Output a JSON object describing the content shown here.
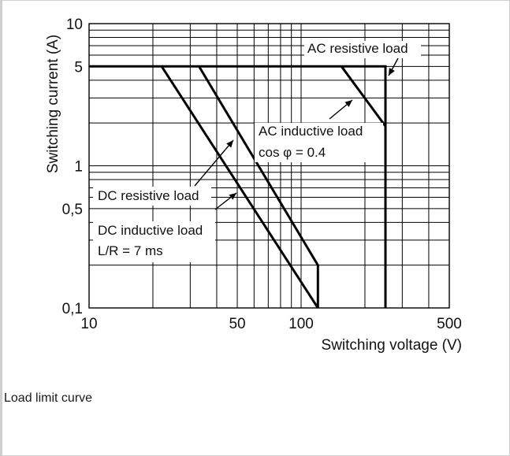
{
  "caption": "Load limit curve",
  "chart_data": {
    "type": "line",
    "xscale": "log",
    "yscale": "log",
    "xlim": [
      10,
      500
    ],
    "ylim": [
      0.1,
      10
    ],
    "xlabel": "Switching voltage (V)",
    "ylabel": "Switching current (A)",
    "x_tick_labels": [
      {
        "value": 10,
        "label": "10"
      },
      {
        "value": 50,
        "label": "50"
      },
      {
        "value": 100,
        "label": "100"
      },
      {
        "value": 500,
        "label": "500"
      }
    ],
    "y_tick_labels": [
      {
        "value": 10,
        "label": "10"
      },
      {
        "value": 5,
        "label": "5"
      },
      {
        "value": 1,
        "label": "1"
      },
      {
        "value": 0.5,
        "label": "0,5"
      },
      {
        "value": 0.1,
        "label": "0,1"
      }
    ],
    "grid": true,
    "series": [
      {
        "name": "AC resistive load",
        "x": [
          10,
          250,
          250
        ],
        "y": [
          5,
          5,
          0.1
        ]
      },
      {
        "name": "AC inductive load cos φ = 0.4",
        "x": [
          155,
          250
        ],
        "y": [
          5,
          1.9
        ]
      },
      {
        "name": "DC resistive load",
        "x": [
          33,
          120,
          120
        ],
        "y": [
          5,
          0.2,
          0.1
        ]
      },
      {
        "name": "DC inductive load L/R = 7 ms",
        "x": [
          22,
          120
        ],
        "y": [
          5,
          0.1
        ]
      }
    ],
    "annotations": [
      {
        "lines": [
          "AC resistive load"
        ],
        "target": "AC resistive load"
      },
      {
        "lines": [
          "AC inductive load",
          "cos φ = 0.4"
        ],
        "target": "AC inductive load cos φ = 0.4"
      },
      {
        "lines": [
          "DC resistive load"
        ],
        "target": "DC resistive load"
      },
      {
        "lines": [
          "DC inductive load",
          "L/R = 7 ms"
        ],
        "target": "DC inductive load L/R = 7 ms"
      }
    ]
  }
}
